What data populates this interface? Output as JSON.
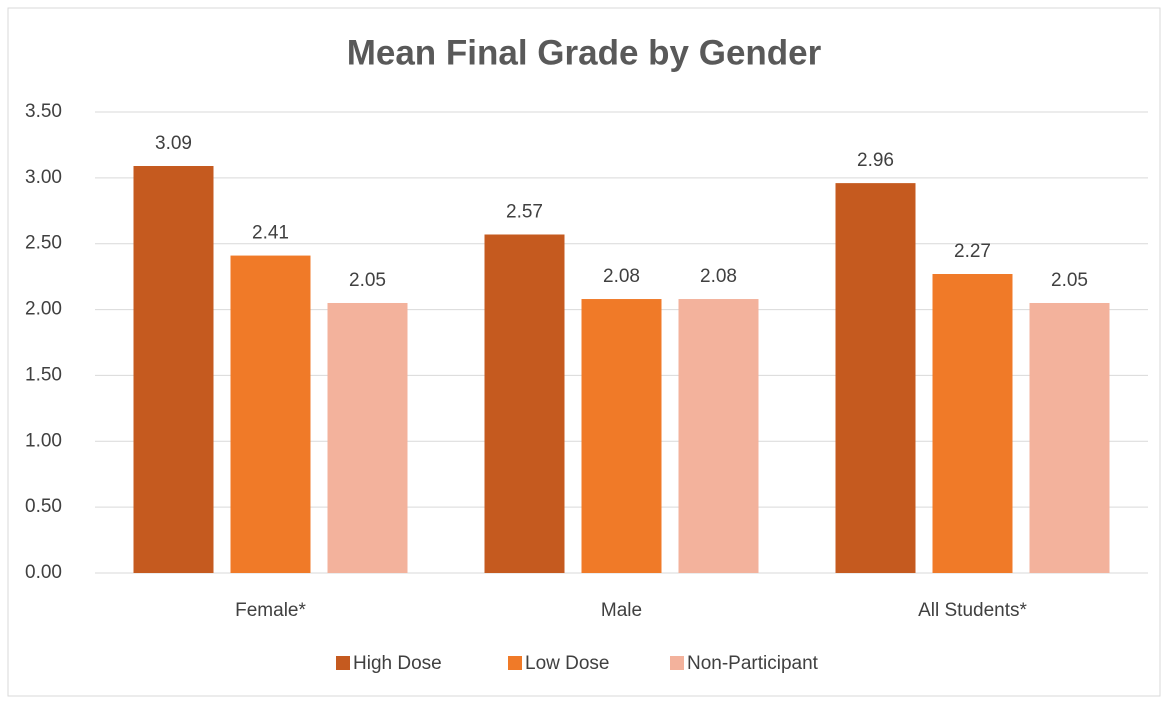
{
  "chart_data": {
    "type": "bar",
    "title": "Mean Final Grade by Gender",
    "categories": [
      "Female*",
      "Male",
      "All Students*"
    ],
    "series": [
      {
        "name": "High Dose",
        "color": "#c55a1f",
        "values": [
          3.09,
          2.57,
          2.96
        ]
      },
      {
        "name": "Low Dose",
        "color": "#f07a28",
        "values": [
          2.41,
          2.08,
          2.27
        ]
      },
      {
        "name": "Non-Participant",
        "color": "#f3b29c",
        "values": [
          2.05,
          2.08,
          2.05
        ]
      }
    ],
    "ylim": [
      0,
      3.5
    ],
    "yticks": [
      {
        "value": 0,
        "label": "0.00"
      },
      {
        "value": 0.5,
        "label": "0.50"
      },
      {
        "value": 1,
        "label": "1.00"
      },
      {
        "value": 1.5,
        "label": "1.50"
      },
      {
        "value": 2,
        "label": "2.00"
      },
      {
        "value": 2.5,
        "label": "2.50"
      },
      {
        "value": 3,
        "label": "3.00"
      },
      {
        "value": 3.5,
        "label": "3.50"
      }
    ],
    "grid": true,
    "legend": "bottom"
  }
}
